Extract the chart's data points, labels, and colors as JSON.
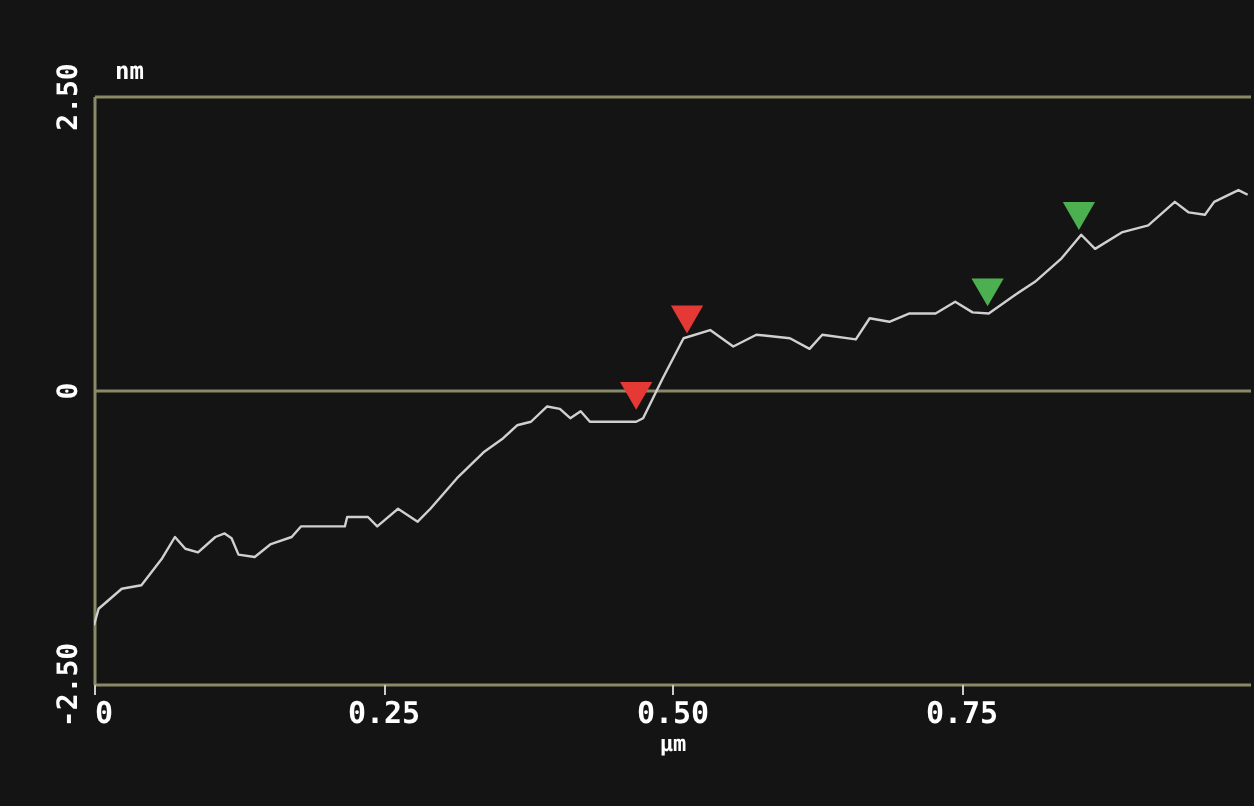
{
  "chart_data": {
    "type": "line",
    "xlabel": "µm",
    "ylabel": "nm",
    "xlim": [
      0,
      1.0
    ],
    "xticks": [
      0,
      0.25,
      {
        "value": 0.5,
        "label": "0.50"
      },
      0.75
    ],
    "ylim": [
      -2.5,
      2.5
    ],
    "yticks": [
      {
        "value": -2.5,
        "label": "-2.50"
      },
      0,
      {
        "value": 2.5,
        "label": "2.50"
      }
    ],
    "grid": "y",
    "line_style": "solid",
    "series": [
      {
        "color": "#d0d0d0",
        "marker": "none",
        "x": [
          0,
          0.004,
          0.024,
          0.041,
          0.059,
          0.07,
          0.079,
          0.09,
          0.105,
          0.113,
          0.119,
          0.125,
          0.139,
          0.153,
          0.171,
          0.179,
          0.217,
          0.219,
          0.237,
          0.245,
          0.263,
          0.28,
          0.291,
          0.314,
          0.337,
          0.354,
          0.366,
          0.378,
          0.392,
          0.403,
          0.412,
          0.421,
          0.429,
          0.469,
          0.475,
          0.492,
          0.51,
          0.533,
          0.553,
          0.573,
          0.602,
          0.619,
          0.63,
          0.659,
          0.671,
          0.688,
          0.705,
          0.728,
          0.745,
          0.76,
          0.774,
          0.797,
          0.814,
          0.837,
          0.854,
          0.866,
          0.889,
          0.912,
          0.935,
          0.947,
          0.961,
          0.969,
          0.99,
          0.998
        ],
        "values": [
          -2.0,
          -1.86,
          -1.69,
          -1.66,
          -1.43,
          -1.25,
          -1.35,
          -1.38,
          -1.25,
          -1.22,
          -1.26,
          -1.4,
          -1.42,
          -1.31,
          -1.25,
          -1.16,
          -1.16,
          -1.08,
          -1.08,
          -1.16,
          -1.01,
          -1.12,
          -1.01,
          -0.75,
          -0.53,
          -0.41,
          -0.3,
          -0.27,
          -0.14,
          -0.16,
          -0.24,
          -0.18,
          -0.27,
          -0.27,
          -0.24,
          0.1,
          0.44,
          0.51,
          0.37,
          0.47,
          0.44,
          0.35,
          0.47,
          0.43,
          0.61,
          0.58,
          0.65,
          0.65,
          0.75,
          0.66,
          0.65,
          0.81,
          0.92,
          1.12,
          1.32,
          1.2,
          1.34,
          1.4,
          1.6,
          1.51,
          1.49,
          1.6,
          1.7,
          1.66
        ]
      },
      {
        "type": "scatter",
        "color": "#e53935",
        "marker": "triangle",
        "x": [
          0.469,
          0.513
        ],
        "values": [
          -0.05,
          0.6
        ]
      },
      {
        "type": "scatter",
        "color": "#4caf50",
        "marker": "triangle",
        "x": [
          0.773,
          0.852
        ],
        "values": [
          0.83,
          1.48
        ]
      }
    ]
  }
}
